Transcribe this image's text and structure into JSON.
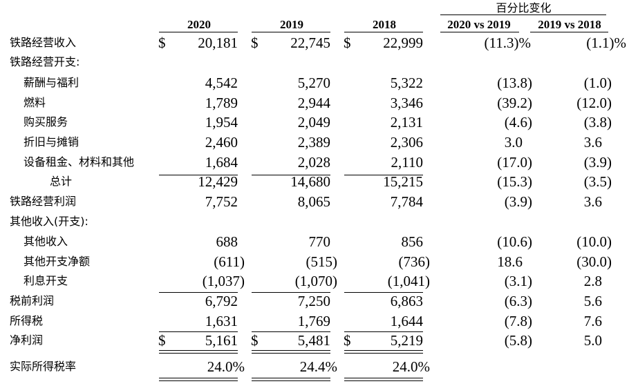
{
  "header": {
    "pct_change": "百分比变化",
    "years": [
      "2020",
      "2019",
      "2018"
    ],
    "compare": [
      "2020 vs 2019",
      "2019 vs 2018"
    ]
  },
  "currency": "$",
  "rows": [
    {
      "label": "铁路经营收入",
      "indent": 0,
      "values": [
        "20,181",
        "22,745",
        "22,999"
      ],
      "pct": [
        "(11.3)%",
        "(1.1)%"
      ],
      "dollar": true
    },
    {
      "label": "铁路经营开支:",
      "indent": 0,
      "values": [
        "",
        "",
        ""
      ],
      "pct": [
        "",
        ""
      ]
    },
    {
      "label": "薪酬与福利",
      "indent": 1,
      "values": [
        "4,542",
        "5,270",
        "5,322"
      ],
      "pct": [
        "(13.8)",
        "(1.0)"
      ]
    },
    {
      "label": "燃料",
      "indent": 1,
      "values": [
        "1,789",
        "2,944",
        "3,346"
      ],
      "pct": [
        "(39.2)",
        "(12.0)"
      ]
    },
    {
      "label": "购买服务",
      "indent": 1,
      "values": [
        "1,954",
        "2,049",
        "2,131"
      ],
      "pct": [
        "(4.6)",
        "(3.8)"
      ]
    },
    {
      "label": "折旧与摊销",
      "indent": 1,
      "values": [
        "2,460",
        "2,389",
        "2,306"
      ],
      "pct": [
        "3.0",
        "3.6"
      ]
    },
    {
      "label": "设备租金、材料和其他",
      "indent": 1,
      "values": [
        "1,684",
        "2,028",
        "2,110"
      ],
      "pct": [
        "(17.0)",
        "(3.9)"
      ]
    },
    {
      "label": "总计",
      "indent": 2,
      "values": [
        "12,429",
        "14,680",
        "15,215"
      ],
      "pct": [
        "(15.3)",
        "(3.5)"
      ]
    },
    {
      "label": "铁路经营利润",
      "indent": 0,
      "values": [
        "7,752",
        "8,065",
        "7,784"
      ],
      "pct": [
        "(3.9)",
        "3.6"
      ]
    },
    {
      "label": "其他收入(开支):",
      "indent": 0,
      "values": [
        "",
        "",
        ""
      ],
      "pct": [
        "",
        ""
      ]
    },
    {
      "label": "其他收入",
      "indent": 1,
      "values": [
        "688",
        "770",
        "856"
      ],
      "pct": [
        "(10.6)",
        "(10.0)"
      ]
    },
    {
      "label": "其他开支净额",
      "indent": 1,
      "values": [
        "(611)",
        "(515)",
        "(736)"
      ],
      "pct": [
        "18.6",
        "(30.0)"
      ]
    },
    {
      "label": "利息开支",
      "indent": 1,
      "values": [
        "(1,037)",
        "(1,070)",
        "(1,041)"
      ],
      "pct": [
        "(3.1)",
        "2.8"
      ]
    },
    {
      "label": "税前利润",
      "indent": 0,
      "values": [
        "6,792",
        "7,250",
        "6,863"
      ],
      "pct": [
        "(6.3)",
        "5.6"
      ]
    },
    {
      "label": "所得税",
      "indent": 0,
      "values": [
        "1,631",
        "1,769",
        "1,644"
      ],
      "pct": [
        "(7.8)",
        "7.6"
      ]
    },
    {
      "label": "净利润",
      "indent": 0,
      "values": [
        "5,161",
        "5,481",
        "5,219"
      ],
      "pct": [
        "(5.8)",
        "5.0"
      ],
      "dollar": true
    },
    {
      "label": "实际所得税率",
      "indent": 0,
      "values": [
        "24.0%",
        "24.4%",
        "24.0%"
      ],
      "pct": [
        "",
        ""
      ]
    }
  ]
}
